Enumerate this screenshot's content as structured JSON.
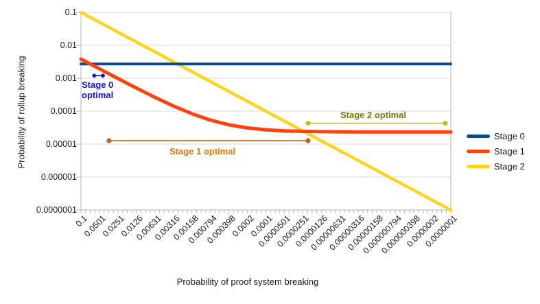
{
  "chart_data": {
    "type": "line",
    "title": "",
    "xlabel": "Probability of proof system breaking",
    "ylabel": "Probability of rollup breaking",
    "x_scale": "log",
    "y_scale": "log",
    "x_axis_reversed": true,
    "x_range": [
      0.1,
      1e-07
    ],
    "y_range": [
      0.1,
      1e-07
    ],
    "grid": "horizontal",
    "legend_position": "right",
    "x_tick_labels": [
      "0.1",
      "0.0501",
      "0.0251",
      "0.0126",
      "0.00631",
      "0.00316",
      "0.00158",
      "0.000794",
      "0.000398",
      "0.0002",
      "0.0001",
      "0.0000501",
      "0.0000251",
      "0.0000126",
      "0.00000631",
      "0.00000316",
      "0.00000158",
      "0.000000794",
      "0.000000398",
      "0.0000002",
      "0.0000001"
    ],
    "y_tick_labels": [
      "0.1",
      "0.01",
      "0.001",
      "0.0001",
      "0.00001",
      "0.000001",
      "0.0000001"
    ],
    "series": [
      {
        "name": "Stage 0",
        "color": "#0d4b8c",
        "width": 4,
        "points": [
          [
            0.1,
            0.0027
          ],
          [
            1e-07,
            0.0027
          ]
        ]
      },
      {
        "name": "Stage 1",
        "color": "#ff420e",
        "width": 5,
        "points": [
          [
            0.1,
            0.00383
          ],
          [
            0.0501,
            0.00193
          ],
          [
            0.0251,
            0.00098
          ],
          [
            0.0126,
            0.000503
          ],
          [
            0.00631,
            0.000264
          ],
          [
            0.00316,
            0.000144
          ],
          [
            0.00158,
            8.38e-05
          ],
          [
            0.000794,
            5.37e-05
          ],
          [
            0.000398,
            3.86e-05
          ],
          [
            0.0002,
            3.1e-05
          ],
          [
            0.0001,
            2.72e-05
          ],
          [
            5.01e-05,
            2.53e-05
          ],
          [
            2.51e-05,
            2.44e-05
          ],
          [
            1.26e-05,
            2.39e-05
          ],
          [
            6.31e-06,
            2.36e-05
          ],
          [
            3.16e-06,
            2.35e-05
          ],
          [
            1.58e-06,
            2.35e-05
          ],
          [
            7.94e-07,
            2.34e-05
          ],
          [
            3.98e-07,
            2.34e-05
          ],
          [
            2e-07,
            2.34e-05
          ],
          [
            1e-07,
            2.34e-05
          ]
        ]
      },
      {
        "name": "Stage 2",
        "color": "#ffd320",
        "width": 4.5,
        "points": [
          [
            0.1,
            0.1
          ],
          [
            1e-07,
            1e-07
          ]
        ]
      }
    ],
    "annotations": [
      {
        "id": "stage0-optimal",
        "label": "Stage 0 optimal",
        "label_line1": "Stage 0",
        "label_line2": "optimal",
        "x1": 0.061,
        "x2": 0.044,
        "y": 0.0012,
        "line_color": "#1414cc",
        "text_color": "#1414cc",
        "marker_r": 2.8
      },
      {
        "id": "stage1-optimal",
        "label": "Stage 1 optimal",
        "x1": 0.035,
        "x2": 2.07e-05,
        "y": 1.27e-05,
        "line_color": "#c56211",
        "text_color": "#e0790f",
        "marker_r": 3.6
      },
      {
        "id": "stage2-optimal",
        "label": "Stage 2 optimal",
        "x1": 2.07e-05,
        "x2": 1.23e-07,
        "y": 4.32e-05,
        "line_color": "#bcbc00",
        "text_color": "#7a7a00",
        "marker_r": 3.4
      }
    ],
    "colors": {
      "gridline": "#d9d9d9",
      "axis": "#b3b3b3",
      "tick_text": "#1a1a1a"
    }
  }
}
